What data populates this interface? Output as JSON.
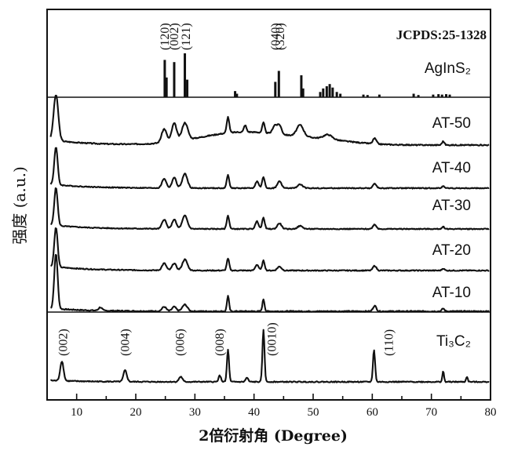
{
  "chart_data": {
    "type": "line",
    "xlabel": "2倍衍射角 (Degree)",
    "ylabel": "强度 (a.u.)",
    "xlim": [
      5,
      80
    ],
    "x_ticks": [
      10,
      20,
      30,
      40,
      50,
      60,
      70,
      80
    ],
    "x_tick_labels": [
      "10",
      "20",
      "30",
      "40",
      "50",
      "60",
      "70",
      "80"
    ],
    "reference": {
      "card": "JCPDS:25-1328",
      "name": "AgInS₂",
      "bars": [
        {
          "x": 24.9,
          "h": 0.85
        },
        {
          "x": 25.2,
          "h": 0.45
        },
        {
          "x": 26.5,
          "h": 0.8
        },
        {
          "x": 28.3,
          "h": 1.0
        },
        {
          "x": 28.7,
          "h": 0.4
        },
        {
          "x": 36.8,
          "h": 0.14
        },
        {
          "x": 37.1,
          "h": 0.08
        },
        {
          "x": 43.6,
          "h": 0.35
        },
        {
          "x": 44.2,
          "h": 0.6
        },
        {
          "x": 48.0,
          "h": 0.5
        },
        {
          "x": 48.3,
          "h": 0.2
        },
        {
          "x": 51.2,
          "h": 0.12
        },
        {
          "x": 51.7,
          "h": 0.2
        },
        {
          "x": 52.3,
          "h": 0.25
        },
        {
          "x": 52.8,
          "h": 0.3
        },
        {
          "x": 53.3,
          "h": 0.22
        },
        {
          "x": 54.0,
          "h": 0.12
        },
        {
          "x": 54.6,
          "h": 0.08
        },
        {
          "x": 58.5,
          "h": 0.06
        },
        {
          "x": 59.2,
          "h": 0.05
        },
        {
          "x": 61.2,
          "h": 0.06
        },
        {
          "x": 67.0,
          "h": 0.08
        },
        {
          "x": 67.8,
          "h": 0.05
        },
        {
          "x": 70.3,
          "h": 0.06
        },
        {
          "x": 71.2,
          "h": 0.07
        },
        {
          "x": 71.8,
          "h": 0.06
        },
        {
          "x": 72.5,
          "h": 0.07
        },
        {
          "x": 73.1,
          "h": 0.06
        }
      ],
      "hkl": [
        {
          "label": "(120)",
          "x": 24.9
        },
        {
          "label": "(002)",
          "x": 26.5
        },
        {
          "label": "(121)",
          "x": 28.5
        },
        {
          "label": "(040)",
          "x": 43.6
        },
        {
          "label": "(320)",
          "x": 44.4
        }
      ]
    },
    "series": [
      {
        "name": "AT-50",
        "baseline": 0.13,
        "noise": 0.012,
        "peaks": [
          {
            "x": 6.5,
            "h": 1.0,
            "w": 0.55
          },
          {
            "x": 24.8,
            "h": 0.3,
            "w": 0.6
          },
          {
            "x": 26.5,
            "h": 0.4,
            "w": 0.6
          },
          {
            "x": 28.3,
            "h": 0.38,
            "w": 0.7
          },
          {
            "x": 35.6,
            "h": 0.35,
            "w": 0.3
          },
          {
            "x": 38.5,
            "h": 0.15,
            "w": 0.3
          },
          {
            "x": 41.6,
            "h": 0.22,
            "w": 0.3
          },
          {
            "x": 43.5,
            "h": 0.18,
            "w": 0.5
          },
          {
            "x": 44.3,
            "h": 0.2,
            "w": 0.5
          },
          {
            "x": 47.8,
            "h": 0.25,
            "w": 0.8
          },
          {
            "x": 52.5,
            "h": 0.1,
            "w": 1.0
          },
          {
            "x": 60.4,
            "h": 0.12,
            "w": 0.4
          },
          {
            "x": 72.0,
            "h": 0.08,
            "w": 0.3
          }
        ],
        "humps": [
          {
            "x": 38,
            "h": 0.28,
            "w": 10
          },
          {
            "x": 51,
            "h": 0.1,
            "w": 8
          }
        ]
      },
      {
        "name": "AT-40",
        "baseline": 0.12,
        "noise": 0.012,
        "peaks": [
          {
            "x": 6.5,
            "h": 1.0,
            "w": 0.4
          },
          {
            "x": 24.8,
            "h": 0.25,
            "w": 0.5
          },
          {
            "x": 26.5,
            "h": 0.28,
            "w": 0.5
          },
          {
            "x": 28.3,
            "h": 0.38,
            "w": 0.6
          },
          {
            "x": 35.6,
            "h": 0.35,
            "w": 0.3
          },
          {
            "x": 40.5,
            "h": 0.18,
            "w": 0.4
          },
          {
            "x": 41.6,
            "h": 0.3,
            "w": 0.3
          },
          {
            "x": 44.3,
            "h": 0.18,
            "w": 0.5
          },
          {
            "x": 47.8,
            "h": 0.1,
            "w": 0.6
          },
          {
            "x": 60.4,
            "h": 0.12,
            "w": 0.4
          },
          {
            "x": 72.0,
            "h": 0.06,
            "w": 0.3
          }
        ],
        "humps": []
      },
      {
        "name": "AT-30",
        "baseline": 0.12,
        "noise": 0.012,
        "peaks": [
          {
            "x": 6.5,
            "h": 1.0,
            "w": 0.4
          },
          {
            "x": 24.8,
            "h": 0.25,
            "w": 0.5
          },
          {
            "x": 26.5,
            "h": 0.25,
            "w": 0.5
          },
          {
            "x": 28.3,
            "h": 0.35,
            "w": 0.6
          },
          {
            "x": 35.6,
            "h": 0.35,
            "w": 0.3
          },
          {
            "x": 40.5,
            "h": 0.2,
            "w": 0.4
          },
          {
            "x": 41.6,
            "h": 0.3,
            "w": 0.3
          },
          {
            "x": 44.3,
            "h": 0.15,
            "w": 0.5
          },
          {
            "x": 47.8,
            "h": 0.08,
            "w": 0.6
          },
          {
            "x": 60.4,
            "h": 0.12,
            "w": 0.4
          },
          {
            "x": 72.0,
            "h": 0.06,
            "w": 0.3
          }
        ],
        "humps": []
      },
      {
        "name": "AT-20",
        "baseline": 0.12,
        "noise": 0.012,
        "peaks": [
          {
            "x": 6.5,
            "h": 1.0,
            "w": 0.4
          },
          {
            "x": 24.8,
            "h": 0.18,
            "w": 0.5
          },
          {
            "x": 26.5,
            "h": 0.18,
            "w": 0.5
          },
          {
            "x": 28.3,
            "h": 0.28,
            "w": 0.6
          },
          {
            "x": 35.6,
            "h": 0.3,
            "w": 0.3
          },
          {
            "x": 40.5,
            "h": 0.15,
            "w": 0.4
          },
          {
            "x": 41.6,
            "h": 0.25,
            "w": 0.3
          },
          {
            "x": 44.3,
            "h": 0.1,
            "w": 0.5
          },
          {
            "x": 60.4,
            "h": 0.12,
            "w": 0.4
          },
          {
            "x": 72.0,
            "h": 0.05,
            "w": 0.3
          }
        ],
        "humps": []
      },
      {
        "name": "AT-10",
        "baseline": 0.06,
        "noise": 0.01,
        "peaks": [
          {
            "x": 6.5,
            "h": 1.0,
            "w": 0.4
          },
          {
            "x": 14.0,
            "h": 0.06,
            "w": 0.4
          },
          {
            "x": 24.8,
            "h": 0.08,
            "w": 0.5
          },
          {
            "x": 26.5,
            "h": 0.08,
            "w": 0.5
          },
          {
            "x": 28.3,
            "h": 0.12,
            "w": 0.6
          },
          {
            "x": 35.6,
            "h": 0.28,
            "w": 0.25
          },
          {
            "x": 41.6,
            "h": 0.22,
            "w": 0.25
          },
          {
            "x": 60.4,
            "h": 0.1,
            "w": 0.4
          },
          {
            "x": 72.0,
            "h": 0.05,
            "w": 0.3
          }
        ],
        "humps": []
      },
      {
        "name": "Ti₃C₂",
        "baseline": 0.03,
        "noise": 0.01,
        "peaks": [
          {
            "x": 7.5,
            "h": 0.38,
            "w": 0.4
          },
          {
            "x": 18.2,
            "h": 0.22,
            "w": 0.4
          },
          {
            "x": 27.6,
            "h": 0.1,
            "w": 0.4
          },
          {
            "x": 34.2,
            "h": 0.12,
            "w": 0.3
          },
          {
            "x": 35.6,
            "h": 0.62,
            "w": 0.25
          },
          {
            "x": 38.8,
            "h": 0.08,
            "w": 0.3
          },
          {
            "x": 41.6,
            "h": 1.0,
            "w": 0.25
          },
          {
            "x": 60.3,
            "h": 0.62,
            "w": 0.25
          },
          {
            "x": 72.0,
            "h": 0.2,
            "w": 0.2
          },
          {
            "x": 76.0,
            "h": 0.1,
            "w": 0.2
          }
        ],
        "humps": [],
        "hkl": [
          {
            "label": "(002)",
            "x": 7.7
          },
          {
            "label": "(004)",
            "x": 18.2
          },
          {
            "label": "(006)",
            "x": 27.5
          },
          {
            "label": "(008)",
            "x": 34.2
          },
          {
            "label": "(0010)",
            "x": 43.0
          },
          {
            "label": "(110)",
            "x": 62.8
          }
        ]
      }
    ]
  }
}
